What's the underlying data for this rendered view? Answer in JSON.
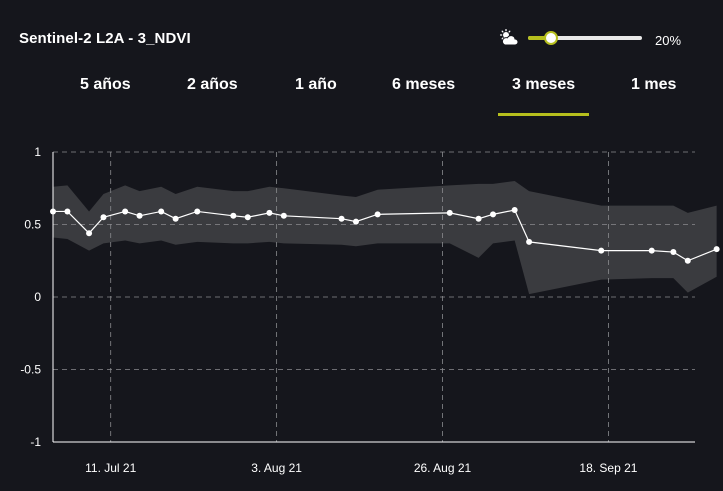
{
  "header": {
    "title": "Sentinel-2 L2A - 3_NDVI",
    "cloud_icon": "cloud-sun-icon",
    "cloud_coverage_label": "20%",
    "cloud_coverage_fraction": 0.2
  },
  "tabs": [
    {
      "label": "5 años",
      "active": false
    },
    {
      "label": "2 años",
      "active": false
    },
    {
      "label": "1 año",
      "active": false
    },
    {
      "label": "6 meses",
      "active": false
    },
    {
      "label": "3 meses",
      "active": true
    },
    {
      "label": "1 mes",
      "active": false
    }
  ],
  "colors": {
    "background": "#15161c",
    "accent": "#b6bf1d",
    "band": "#3a3b3f",
    "line": "#ffffff",
    "grid": "#8a8b8e"
  },
  "chart_data": {
    "type": "line",
    "xlabel": "",
    "ylabel": "",
    "ylim": [
      -1,
      1
    ],
    "xlim": [
      "2021-07-03",
      "2021-09-30"
    ],
    "grid": true,
    "y_ticks": [
      {
        "value": 1,
        "label": "1"
      },
      {
        "value": 0.5,
        "label": "0.5"
      },
      {
        "value": 0,
        "label": "0"
      },
      {
        "value": -0.5,
        "label": "-0.5"
      },
      {
        "value": -1,
        "label": "-1"
      }
    ],
    "x_ticks": [
      {
        "date": "2021-07-11",
        "label": "11. Jul 21"
      },
      {
        "date": "2021-08-03",
        "label": "3. Aug 21"
      },
      {
        "date": "2021-08-26",
        "label": "26. Aug 21"
      },
      {
        "date": "2021-09-18",
        "label": "18. Sep 21"
      }
    ],
    "series": [
      {
        "points": [
          {
            "date": "2021-07-03",
            "mean": 0.59,
            "min": 0.41,
            "max": 0.76
          },
          {
            "date": "2021-07-05",
            "mean": 0.59,
            "min": 0.4,
            "max": 0.77
          },
          {
            "date": "2021-07-08",
            "mean": 0.44,
            "min": 0.32,
            "max": 0.59
          },
          {
            "date": "2021-07-10",
            "mean": 0.55,
            "min": 0.37,
            "max": 0.71
          },
          {
            "date": "2021-07-13",
            "mean": 0.59,
            "min": 0.39,
            "max": 0.77
          },
          {
            "date": "2021-07-15",
            "mean": 0.56,
            "min": 0.37,
            "max": 0.73
          },
          {
            "date": "2021-07-18",
            "mean": 0.59,
            "min": 0.39,
            "max": 0.76
          },
          {
            "date": "2021-07-20",
            "mean": 0.54,
            "min": 0.36,
            "max": 0.71
          },
          {
            "date": "2021-07-23",
            "mean": 0.59,
            "min": 0.38,
            "max": 0.76
          },
          {
            "date": "2021-07-28",
            "mean": 0.56,
            "min": 0.37,
            "max": 0.73
          },
          {
            "date": "2021-07-30",
            "mean": 0.55,
            "min": 0.37,
            "max": 0.73
          },
          {
            "date": "2021-08-02",
            "mean": 0.58,
            "min": 0.38,
            "max": 0.76
          },
          {
            "date": "2021-08-04",
            "mean": 0.56,
            "min": 0.37,
            "max": 0.75
          },
          {
            "date": "2021-08-12",
            "mean": 0.54,
            "min": 0.36,
            "max": 0.7
          },
          {
            "date": "2021-08-14",
            "mean": 0.52,
            "min": 0.35,
            "max": 0.69
          },
          {
            "date": "2021-08-17",
            "mean": 0.57,
            "min": 0.37,
            "max": 0.74
          },
          {
            "date": "2021-08-27",
            "mean": 0.58,
            "min": 0.37,
            "max": 0.77
          },
          {
            "date": "2021-08-31",
            "mean": 0.54,
            "min": 0.27,
            "max": 0.78
          },
          {
            "date": "2021-09-02",
            "mean": 0.57,
            "min": 0.37,
            "max": 0.78
          },
          {
            "date": "2021-09-05",
            "mean": 0.6,
            "min": 0.39,
            "max": 0.8
          },
          {
            "date": "2021-09-07",
            "mean": 0.38,
            "min": 0.02,
            "max": 0.73
          },
          {
            "date": "2021-09-17",
            "mean": 0.32,
            "min": 0.12,
            "max": 0.63
          },
          {
            "date": "2021-09-24",
            "mean": 0.32,
            "min": 0.13,
            "max": 0.63
          },
          {
            "date": "2021-09-27",
            "mean": 0.31,
            "min": 0.13,
            "max": 0.63
          },
          {
            "date": "2021-09-29",
            "mean": 0.25,
            "min": 0.03,
            "max": 0.58
          },
          {
            "date": "2021-10-03",
            "mean": 0.33,
            "min": 0.14,
            "max": 0.63
          }
        ]
      }
    ]
  }
}
